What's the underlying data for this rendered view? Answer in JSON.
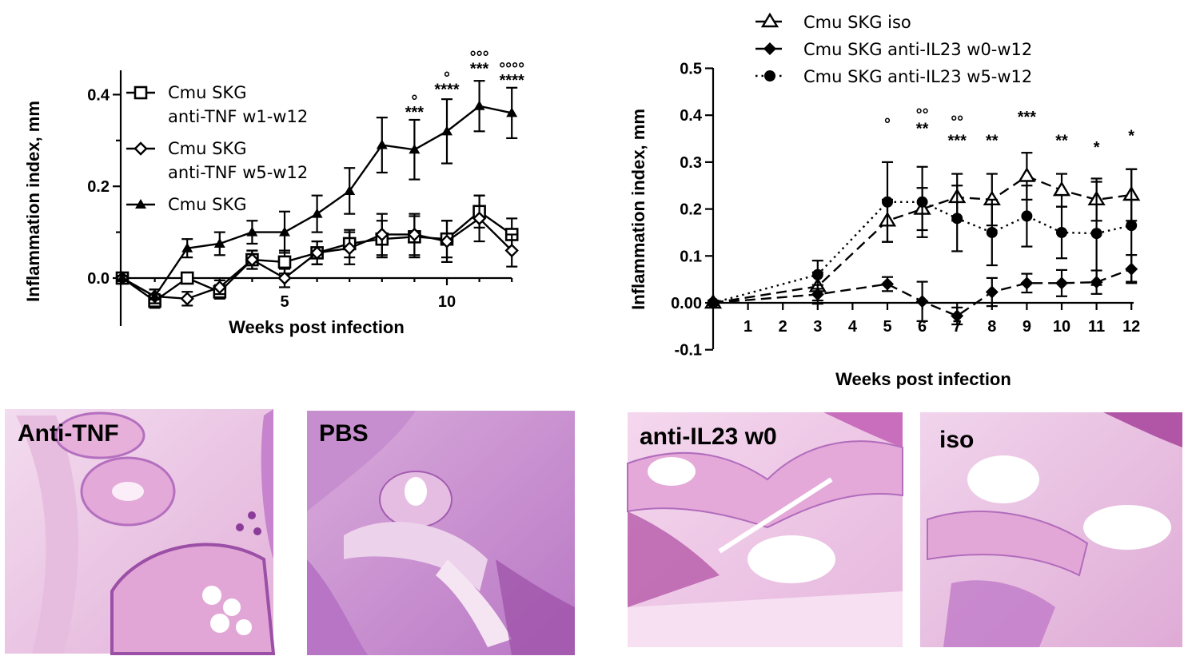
{
  "chart_data": [
    {
      "type": "line",
      "xlabel": "Weeks post infection",
      "ylabel": "Inflammation index, mm",
      "xlim": [
        0,
        12
      ],
      "ylim": [
        -0.1,
        0.45
      ],
      "xticks": [
        "5",
        "10"
      ],
      "yticks": [
        "0.0",
        "0.2",
        "0.4"
      ],
      "legend_position": "top-left",
      "grid": false,
      "series": [
        {
          "name": "Cmu SKG anti-TNF w1-w12",
          "marker": "open-square",
          "line": "solid",
          "x": [
            0,
            1,
            2,
            3,
            4,
            5,
            6,
            7,
            8,
            9,
            10,
            11,
            12
          ],
          "y": [
            0.0,
            -0.05,
            0.0,
            -0.03,
            0.04,
            0.035,
            0.055,
            0.075,
            0.085,
            0.09,
            0.085,
            0.145,
            0.095
          ],
          "err": [
            0.005,
            0.015,
            0.012,
            0.015,
            0.02,
            0.025,
            0.025,
            0.03,
            0.04,
            0.045,
            0.04,
            0.035,
            0.035
          ]
        },
        {
          "name": "Cmu SKG anti-TNF w5-w12",
          "marker": "open-diamond",
          "line": "solid",
          "x": [
            0,
            1,
            2,
            3,
            4,
            5,
            6,
            7,
            8,
            9,
            10,
            11,
            12
          ],
          "y": [
            0.0,
            -0.04,
            -0.045,
            -0.02,
            0.04,
            0.0,
            0.055,
            0.065,
            0.095,
            0.095,
            0.08,
            0.13,
            0.06
          ],
          "err": [
            0.005,
            0.015,
            0.015,
            0.015,
            0.02,
            0.02,
            0.025,
            0.035,
            0.045,
            0.045,
            0.045,
            0.05,
            0.035
          ]
        },
        {
          "name": "Cmu SKG",
          "marker": "filled-triangle",
          "line": "solid",
          "x": [
            0,
            1,
            2,
            3,
            4,
            5,
            6,
            7,
            8,
            9,
            10,
            11,
            12
          ],
          "y": [
            0.0,
            -0.04,
            0.065,
            0.075,
            0.1,
            0.1,
            0.14,
            0.19,
            0.29,
            0.28,
            0.32,
            0.375,
            0.36
          ],
          "err": [
            0.005,
            0.015,
            0.02,
            0.025,
            0.025,
            0.045,
            0.04,
            0.05,
            0.06,
            0.065,
            0.07,
            0.055,
            0.055
          ]
        }
      ],
      "annotations": [
        {
          "x": 9,
          "y": 0.35,
          "text": "***"
        },
        {
          "x": 9,
          "y": 0.375,
          "text": "°"
        },
        {
          "x": 10,
          "y": 0.4,
          "text": "****"
        },
        {
          "x": 10,
          "y": 0.425,
          "text": "°"
        },
        {
          "x": 11,
          "y": 0.445,
          "text": "***"
        },
        {
          "x": 11,
          "y": 0.47,
          "text": "°°°"
        },
        {
          "x": 12,
          "y": 0.42,
          "text": "****"
        },
        {
          "x": 12,
          "y": 0.445,
          "text": "°°°°"
        }
      ]
    },
    {
      "type": "line",
      "xlabel": "Weeks post infection",
      "ylabel": "Inflammation index, mm",
      "xlim": [
        0,
        12
      ],
      "ylim": [
        -0.1,
        0.5
      ],
      "xticks": [
        "1",
        "2",
        "3",
        "4",
        "5",
        "6",
        "7",
        "8",
        "9",
        "10",
        "11",
        "12"
      ],
      "yticks": [
        "-0.1",
        "0.00",
        "0.1",
        "0.2",
        "0.3",
        "0.4",
        "0.5"
      ],
      "legend_position": "top",
      "grid": false,
      "series": [
        {
          "name": "Cmu SKG iso",
          "marker": "open-triangle",
          "line": "dashed",
          "x": [
            0,
            3,
            5,
            6,
            7,
            8,
            9,
            10,
            11,
            12
          ],
          "y": [
            0.0,
            0.035,
            0.175,
            0.2,
            0.225,
            0.22,
            0.27,
            0.24,
            0.22,
            0.23
          ],
          "err": [
            0.005,
            0.03,
            0.045,
            0.045,
            0.05,
            0.055,
            0.05,
            0.035,
            0.045,
            0.055
          ]
        },
        {
          "name": "Cmu SKG anti-IL23 w0-w12",
          "marker": "filled-diamond",
          "line": "dashed",
          "x": [
            0,
            3,
            5,
            6,
            7,
            8,
            9,
            10,
            11,
            12
          ],
          "y": [
            0.0,
            0.018,
            0.04,
            0.003,
            -0.028,
            0.023,
            0.042,
            0.042,
            0.044,
            0.072
          ],
          "err": [
            0.005,
            0.02,
            0.015,
            0.042,
            0.018,
            0.03,
            0.02,
            0.028,
            0.025,
            0.03
          ]
        },
        {
          "name": "Cmu SKG anti-IL23 w5-w12",
          "marker": "filled-circle",
          "line": "dotted",
          "x": [
            0,
            3,
            5,
            6,
            7,
            8,
            9,
            10,
            11,
            12
          ],
          "y": [
            0.0,
            0.06,
            0.215,
            0.215,
            0.18,
            0.15,
            0.185,
            0.15,
            0.148,
            0.165
          ],
          "err": [
            0.005,
            0.03,
            0.085,
            0.075,
            0.07,
            0.07,
            0.065,
            0.055,
            0.11,
            0.12
          ]
        }
      ],
      "annotations": [
        {
          "x": 5,
          "y": 0.37,
          "text": "°"
        },
        {
          "x": 6,
          "y": 0.36,
          "text": "**"
        },
        {
          "x": 6,
          "y": 0.39,
          "text": "°°"
        },
        {
          "x": 7,
          "y": 0.335,
          "text": "***"
        },
        {
          "x": 7,
          "y": 0.375,
          "text": "°°"
        },
        {
          "x": 8,
          "y": 0.335,
          "text": "**"
        },
        {
          "x": 9,
          "y": 0.385,
          "text": "***"
        },
        {
          "x": 10,
          "y": 0.335,
          "text": "**"
        },
        {
          "x": 11,
          "y": 0.32,
          "text": "*"
        },
        {
          "x": 12,
          "y": 0.345,
          "text": "*"
        }
      ]
    }
  ],
  "panels": [
    {
      "label": "Anti-TNF",
      "base": "#e9bee0",
      "dark": "#9b4fa6"
    },
    {
      "label": "PBS",
      "base": "#d7a7d8",
      "dark": "#8a3c98"
    },
    {
      "label": "anti-IL23 w0",
      "base": "#ecc3e3",
      "dark": "#a25aa8"
    },
    {
      "label": "iso",
      "base": "#ebc0e2",
      "dark": "#9a55a5"
    }
  ]
}
